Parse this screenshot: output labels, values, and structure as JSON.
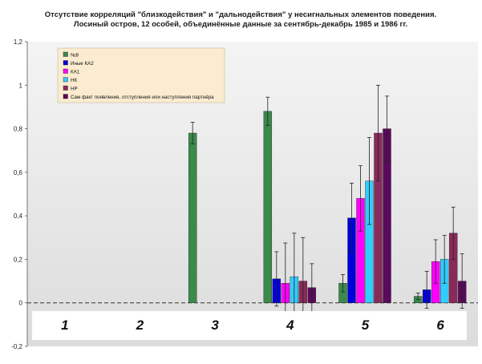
{
  "chart_data": {
    "type": "bar",
    "title_line1": "Отсутствие корреляций \"близкодействия\" и \"дальнодействия\" у несигнальных элементов поведения.",
    "title_line2": "Лосиный остров, 12 особей, объединённые данные за сентябрь-декабрь 1985 и 1986 гг.",
    "categories": [
      "1",
      "2",
      "3",
      "4",
      "5",
      "6"
    ],
    "ylim": [
      -0.2,
      1.2
    ],
    "yticks": [
      -0.2,
      0,
      0.2,
      0.4,
      0.6,
      0.8,
      1,
      1.2
    ],
    "ytick_labels": [
      "-0,2",
      "0",
      "0,2",
      "0,4",
      "0,6",
      "0,8",
      "1",
      "1,2"
    ],
    "legend_position": "top-left",
    "grid": false,
    "series": [
      {
        "name": "№8",
        "color": "#3a8a4a",
        "values": [
          0,
          0,
          0.78,
          0.88,
          0.09,
          0.03
        ],
        "errors": [
          0,
          0,
          0.05,
          0.065,
          0.04,
          0.015
        ]
      },
      {
        "name": "Иные КА2",
        "color": "#0000dd",
        "values": [
          0,
          0,
          0,
          0.11,
          0.39,
          0.06
        ],
        "errors": [
          0,
          0,
          0,
          0.125,
          0.16,
          0.085
        ]
      },
      {
        "name": "КА1",
        "color": "#ff00ff",
        "values": [
          0,
          0,
          0,
          0.09,
          0.48,
          0.19
        ],
        "errors": [
          0,
          0,
          0,
          0.185,
          0.15,
          0.1
        ]
      },
      {
        "name": "НК",
        "color": "#33ccff",
        "values": [
          0,
          0,
          0,
          0.12,
          0.56,
          0.2
        ],
        "errors": [
          0,
          0,
          0,
          0.2,
          0.2,
          0.11
        ]
      },
      {
        "name": "НР",
        "color": "#8a2a5a",
        "values": [
          0,
          0,
          0,
          0.1,
          0.78,
          0.32
        ],
        "errors": [
          0,
          0,
          0,
          0.2,
          0.22,
          0.12
        ]
      },
      {
        "name": "Сам факт появления, отступления или наступления партнёра",
        "color": "#5a0a5a",
        "values": [
          0,
          0,
          0,
          0.07,
          0.8,
          0.1
        ],
        "errors": [
          0,
          0,
          0,
          0.11,
          0.15,
          0.125
        ]
      }
    ],
    "group_labels": [
      "1",
      "2",
      "3",
      "4",
      "5",
      "6"
    ]
  }
}
